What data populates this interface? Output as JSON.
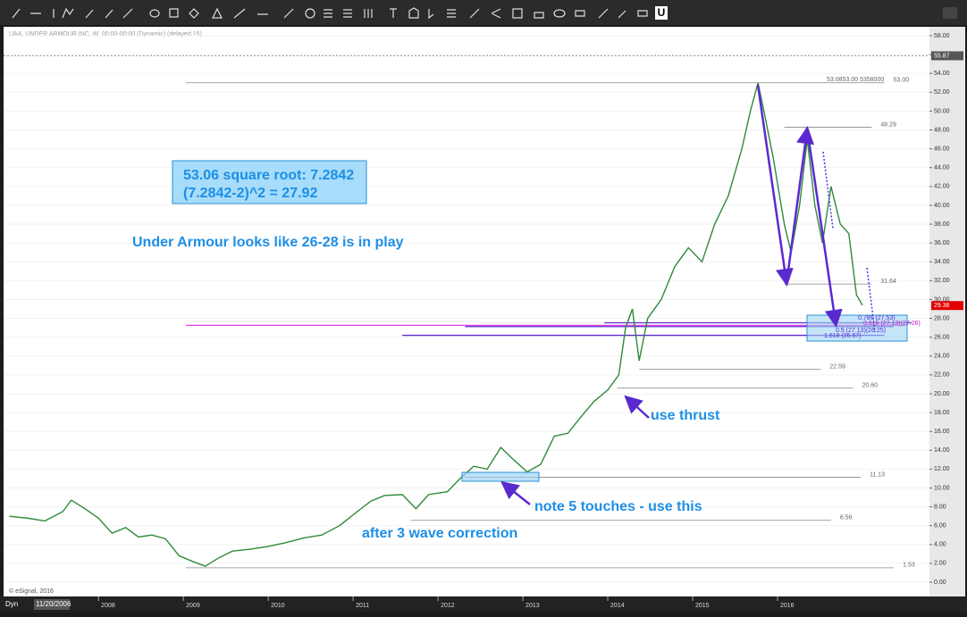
{
  "chart_data": {
    "type": "line",
    "header": "UAA, UNDER ARMOUR INC, W, 00:00-00:00 (Dynamic) (delayed 15)",
    "copyright": "© eSignal, 2016",
    "mode": "Dyn",
    "start_date": "11/20/2006",
    "x": [
      2006.95,
      2007.16,
      2007.37,
      2007.58,
      2007.68,
      2007.84,
      2008.0,
      2008.16,
      2008.32,
      2008.47,
      2008.63,
      2008.79,
      2008.95,
      2009.11,
      2009.26,
      2009.42,
      2009.58,
      2009.79,
      2010.0,
      2010.21,
      2010.42,
      2010.63,
      2010.84,
      2011.05,
      2011.21,
      2011.37,
      2011.58,
      2011.74,
      2011.89,
      2012.11,
      2012.26,
      2012.42,
      2012.58,
      2012.74,
      2012.89,
      2013.05,
      2013.21,
      2013.37,
      2013.53,
      2013.68,
      2013.84,
      2014.0,
      2014.13,
      2014.21,
      2014.29,
      2014.37,
      2014.47,
      2014.63,
      2014.79,
      2014.95,
      2015.11,
      2015.26,
      2015.42,
      2015.58,
      2015.68,
      2015.77,
      2015.84,
      2015.95,
      2016.08,
      2016.16,
      2016.26,
      2016.35,
      2016.44,
      2016.53,
      2016.63,
      2016.74,
      2016.84,
      2016.93,
      2017.0
    ],
    "series": [
      {
        "color": "#2f8a3a",
        "values": [
          7.0,
          6.8,
          6.5,
          7.5,
          8.7,
          7.8,
          6.8,
          5.2,
          5.8,
          4.8,
          5.0,
          4.6,
          2.8,
          2.2,
          1.7,
          2.6,
          3.3,
          3.5,
          3.8,
          4.2,
          4.7,
          5.0,
          6.0,
          7.5,
          8.6,
          9.2,
          9.3,
          7.8,
          9.3,
          9.6,
          11.0,
          12.3,
          12.0,
          14.3,
          13.0,
          11.7,
          12.5,
          15.5,
          15.8,
          17.5,
          19.2,
          20.4,
          22.0,
          27.0,
          29.0,
          23.5,
          28.0,
          30.0,
          33.5,
          35.5,
          34.0,
          38.0,
          41.0,
          46.0,
          50.0,
          53.0,
          50.0,
          45.0,
          38.0,
          35.0,
          40.0,
          47.0,
          40.0,
          36.0,
          42.0,
          38.0,
          37.0,
          30.5,
          29.4
        ]
      }
    ],
    "xlim": [
      2006.84,
      2017.79
    ],
    "xticks": [
      2008,
      2009,
      2010,
      2011,
      2012,
      2013,
      2014,
      2015,
      2016
    ],
    "ylim": [
      0,
      58
    ],
    "yticks": [
      {
        "value": 0,
        "label": "0.00"
      },
      {
        "value": 2,
        "label": "2.00"
      },
      {
        "value": 4,
        "label": "4.00"
      },
      {
        "value": 6,
        "label": "6.00"
      },
      {
        "value": 8,
        "label": "8.00"
      },
      {
        "value": 10,
        "label": "10.00"
      },
      {
        "value": 12,
        "label": "12.00"
      },
      {
        "value": 14,
        "label": "14.00"
      },
      {
        "value": 16,
        "label": "16.00"
      },
      {
        "value": 18,
        "label": "18.00"
      },
      {
        "value": 20,
        "label": "20.00"
      },
      {
        "value": 22,
        "label": "22.00"
      },
      {
        "value": 24,
        "label": "24.00"
      },
      {
        "value": 26,
        "label": "26.00"
      },
      {
        "value": 28,
        "label": "28.00"
      },
      {
        "value": 30,
        "label": "30.00"
      },
      {
        "value": 32,
        "label": "32.00"
      },
      {
        "value": 34,
        "label": "34.00"
      },
      {
        "value": 36,
        "label": "36.00"
      },
      {
        "value": 38,
        "label": "38.00"
      },
      {
        "value": 40,
        "label": "40.00"
      },
      {
        "value": 42,
        "label": "42.00"
      },
      {
        "value": 44,
        "label": "44.00"
      },
      {
        "value": 46,
        "label": "46.00"
      },
      {
        "value": 48,
        "label": "48.00"
      },
      {
        "value": 50,
        "label": "50.00"
      },
      {
        "value": 52,
        "label": "52.00"
      },
      {
        "value": 54,
        "label": "54.00"
      },
      {
        "value": 56,
        "label": "56.00"
      },
      {
        "value": 58,
        "label": "58.00"
      }
    ],
    "price_tags": [
      {
        "value": 55.87,
        "label": "55.87",
        "color": "#555555"
      },
      {
        "value": 29.36,
        "label": "29.36",
        "color": "#e00000"
      }
    ],
    "levels": [
      {
        "value": 53,
        "label": "53.00",
        "start": 2009.03,
        "end": 2017.26,
        "color": "#888888"
      },
      {
        "value": 48.29,
        "label": "48.29",
        "start": 2016.08,
        "end": 2017.11,
        "color": "#888888"
      },
      {
        "value": 31.64,
        "label": "31.64",
        "start": 2016.08,
        "end": 2017.11,
        "color": "#888888"
      },
      {
        "value": 22.59,
        "label": "22.59",
        "start": 2014.37,
        "end": 2016.51,
        "color": "#888888"
      },
      {
        "value": 20.6,
        "label": "20.60",
        "start": 2014.11,
        "end": 2016.89,
        "color": "#888888"
      },
      {
        "value": 11.13,
        "label": "11.13",
        "start": 2012.32,
        "end": 2016.98,
        "color": "#888888"
      },
      {
        "value": 6.56,
        "label": "6.56",
        "start": 2011.68,
        "end": 2016.63,
        "color": "#888888"
      },
      {
        "value": 1.53,
        "label": "1.53",
        "start": 2009.03,
        "end": 2017.37,
        "color": "#888888"
      },
      {
        "value": 27.26,
        "start": 2009.03,
        "end": 2017.53,
        "color": "#e040e0"
      },
      {
        "value": 27.53,
        "start": 2013.96,
        "end": 2017.58,
        "color": "#5a2ad0"
      },
      {
        "value": 27.13,
        "start": 2012.32,
        "end": 2017.37,
        "color": "#5a2ad0"
      },
      {
        "value": 26.2,
        "start": 2011.58,
        "end": 2017.26,
        "color": "#5a2ad0"
      }
    ],
    "top_level_text": "53.0853.00 5358000",
    "fib_labels": [
      "0.786 (27.53)",
      "0.618 (27.13)(27.26)",
      "0.5 (27.13)(26.25)",
      "1.618 (26.67)"
    ],
    "annotations": [
      "53.06 square root: 7.2842",
      "(7.2842-2)^2 = 27.92",
      "Under Armour looks like 26-28 is in play",
      "use thrust",
      "note 5 touches - use this",
      "after 3 wave correction"
    ]
  }
}
